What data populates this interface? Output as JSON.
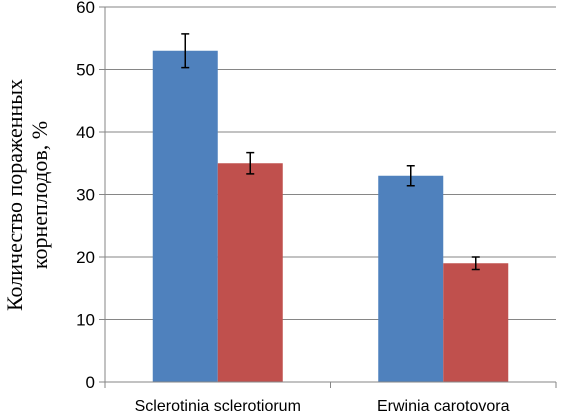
{
  "chart_data": {
    "type": "bar",
    "title": "",
    "xlabel": "",
    "ylabel": "Количество пораженных корнеплодов, %",
    "ylabel_lines": [
      "Количество пораженных",
      "корнеплодов, %"
    ],
    "ylim": [
      0,
      60
    ],
    "yticks": [
      0,
      10,
      20,
      30,
      40,
      50,
      60
    ],
    "grid": true,
    "legend": "none",
    "categories": [
      "Sclerotinia sclerotiorum",
      "Erwinia carotovora"
    ],
    "series": [
      {
        "color": "#4F81BD",
        "values": [
          53,
          33
        ],
        "errors": [
          2.7,
          1.6
        ]
      },
      {
        "color": "#C0504D",
        "values": [
          35,
          19
        ],
        "errors": [
          1.7,
          1.0
        ]
      }
    ]
  }
}
